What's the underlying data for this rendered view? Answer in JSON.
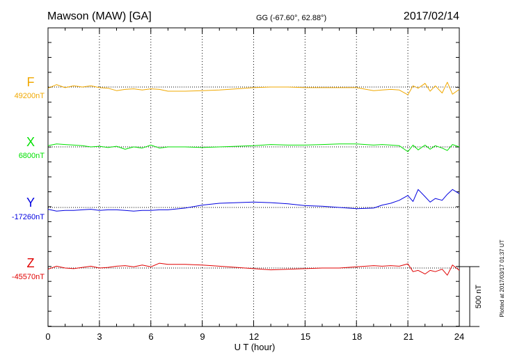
{
  "header": {
    "station": "Mawson (MAW)  [GA]",
    "coords": "GG (-67.60°,  62.88°)",
    "date": "2017/02/14"
  },
  "footer": {
    "plotted": "Plotted at 2017/03/17 01:37 UT"
  },
  "scale_bar": {
    "label": "500 nT",
    "value": 500
  },
  "colors": {
    "F": "#f0a800",
    "X": "#00e000",
    "Y": "#0000e0",
    "Z": "#e00000",
    "axis": "#000000",
    "grid": "#000000"
  },
  "chart_data": {
    "type": "line",
    "title": "Mawson (MAW)  [GA]",
    "xlabel": "U T (hour)",
    "xlim": [
      0,
      24
    ],
    "x_ticks": [
      "0",
      "3",
      "6",
      "9",
      "12",
      "15",
      "18",
      "21",
      "24"
    ],
    "grid": "vertical dotted at every 3 hours",
    "scale": "500 nT per scale bar",
    "series": [
      {
        "name": "F",
        "baseline_label": "49200nT",
        "baseline": 49200,
        "x": [
          0,
          0.5,
          1,
          1.5,
          2,
          2.5,
          3,
          3.5,
          4,
          4.5,
          5,
          5.5,
          6,
          6.5,
          7,
          8,
          9,
          10,
          11,
          12,
          13,
          14,
          15,
          16,
          17,
          18,
          19,
          19.5,
          20,
          20.5,
          21,
          21.3,
          21.6,
          22,
          22.3,
          22.6,
          23,
          23.3,
          23.6,
          24
        ],
        "values": [
          49190,
          49220,
          49195,
          49210,
          49200,
          49210,
          49195,
          49190,
          49170,
          49180,
          49185,
          49175,
          49185,
          49180,
          49165,
          49165,
          49170,
          49175,
          49185,
          49195,
          49200,
          49200,
          49195,
          49195,
          49195,
          49195,
          49170,
          49175,
          49180,
          49175,
          49135,
          49210,
          49190,
          49230,
          49165,
          49210,
          49150,
          49240,
          49140,
          49180
        ]
      },
      {
        "name": "X",
        "baseline_label": "6800nT",
        "baseline": 6800,
        "x": [
          0,
          0.5,
          1,
          1.5,
          2,
          2.5,
          3,
          3.5,
          4,
          4.5,
          5,
          5.5,
          6,
          6.5,
          7,
          8,
          9,
          10,
          11,
          12,
          13,
          14,
          15,
          16,
          17,
          18,
          19,
          19.5,
          20,
          20.5,
          21,
          21.3,
          21.6,
          22,
          22.3,
          22.6,
          23,
          23.3,
          23.6,
          24
        ],
        "values": [
          6810,
          6825,
          6820,
          6815,
          6810,
          6800,
          6805,
          6795,
          6805,
          6780,
          6800,
          6790,
          6815,
          6790,
          6800,
          6800,
          6795,
          6800,
          6805,
          6810,
          6820,
          6815,
          6815,
          6820,
          6825,
          6825,
          6815,
          6820,
          6815,
          6810,
          6760,
          6815,
          6775,
          6815,
          6780,
          6810,
          6790,
          6770,
          6820,
          6800
        ]
      },
      {
        "name": "Y",
        "baseline_label": "-17260nT",
        "baseline": -17260,
        "x": [
          0,
          0.5,
          1,
          1.5,
          2,
          2.5,
          3,
          3.5,
          4,
          4.5,
          5,
          5.5,
          6,
          6.5,
          7,
          8,
          9,
          10,
          11,
          12,
          13,
          14,
          15,
          16,
          17,
          18,
          19,
          19.5,
          20,
          20.5,
          21,
          21.3,
          21.6,
          22,
          22.3,
          22.6,
          23,
          23.3,
          23.6,
          24
        ],
        "values": [
          -17275,
          -17290,
          -17285,
          -17285,
          -17280,
          -17275,
          -17285,
          -17280,
          -17280,
          -17285,
          -17290,
          -17285,
          -17285,
          -17280,
          -17280,
          -17265,
          -17240,
          -17225,
          -17220,
          -17215,
          -17220,
          -17230,
          -17245,
          -17250,
          -17260,
          -17270,
          -17265,
          -17240,
          -17225,
          -17200,
          -17160,
          -17210,
          -17110,
          -17170,
          -17215,
          -17185,
          -17200,
          -17150,
          -17110,
          -17145
        ]
      },
      {
        "name": "Z",
        "baseline_label": "-45570nT",
        "baseline": -45570,
        "x": [
          0,
          0.5,
          1,
          1.5,
          2,
          2.5,
          3,
          3.5,
          4,
          4.5,
          5,
          5.5,
          6,
          6.5,
          7,
          8,
          9,
          10,
          11,
          12,
          13,
          14,
          15,
          16,
          17,
          18,
          19,
          19.5,
          20,
          20.5,
          21,
          21.3,
          21.6,
          22,
          22.3,
          22.6,
          23,
          23.3,
          23.6,
          24
        ],
        "values": [
          -45580,
          -45555,
          -45570,
          -45575,
          -45565,
          -45555,
          -45570,
          -45565,
          -45555,
          -45550,
          -45560,
          -45545,
          -45560,
          -45530,
          -45540,
          -45540,
          -45545,
          -45555,
          -45565,
          -45575,
          -45585,
          -45580,
          -45575,
          -45570,
          -45570,
          -45560,
          -45550,
          -45555,
          -45550,
          -45555,
          -45535,
          -45600,
          -45590,
          -45620,
          -45590,
          -45600,
          -45580,
          -45630,
          -45545,
          -45590
        ]
      }
    ]
  }
}
